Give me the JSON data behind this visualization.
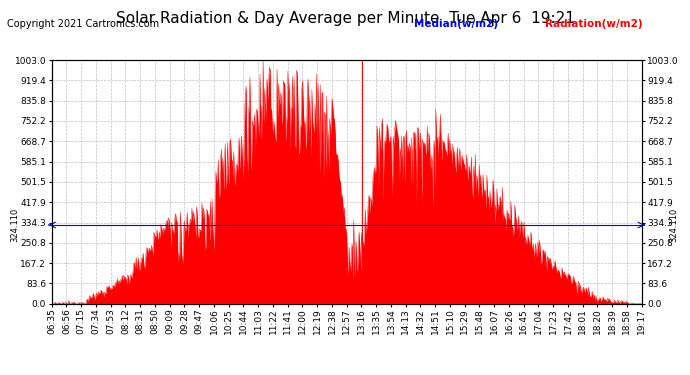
{
  "title": "Solar Radiation & Day Average per Minute  Tue Apr 6  19:21",
  "copyright": "Copyright 2021 Cartronics.com",
  "legend_median": "Median(w/m2)",
  "legend_radiation": "Radiation(w/m2)",
  "median_value": 324.11,
  "median_label": "324.110",
  "ymin": 0.0,
  "ymax": 1003.0,
  "yticks": [
    0.0,
    83.6,
    167.2,
    250.8,
    334.3,
    417.9,
    501.5,
    585.1,
    668.7,
    752.2,
    835.8,
    919.4,
    1003.0
  ],
  "background_color": "#ffffff",
  "fill_color": "#ff0000",
  "line_color": "#ff0000",
  "median_color": "#0000ff",
  "vertical_marker_color": "#ff0000",
  "grid_color": "#b0b0b0",
  "title_fontsize": 11,
  "copyright_fontsize": 7,
  "tick_fontsize": 6.5,
  "legend_fontsize": 7.5,
  "num_points": 763,
  "vertical_line_index": 401,
  "x_tick_labels": [
    "06:35",
    "06:56",
    "07:15",
    "07:34",
    "07:53",
    "08:12",
    "08:31",
    "08:50",
    "09:09",
    "09:28",
    "09:47",
    "10:06",
    "10:25",
    "10:44",
    "11:03",
    "11:22",
    "11:41",
    "12:00",
    "12:19",
    "12:38",
    "12:57",
    "13:16",
    "13:35",
    "13:54",
    "14:13",
    "14:32",
    "14:51",
    "15:10",
    "15:29",
    "15:48",
    "16:07",
    "16:26",
    "16:45",
    "17:04",
    "17:23",
    "17:42",
    "18:01",
    "18:20",
    "18:39",
    "18:58",
    "19:17"
  ]
}
